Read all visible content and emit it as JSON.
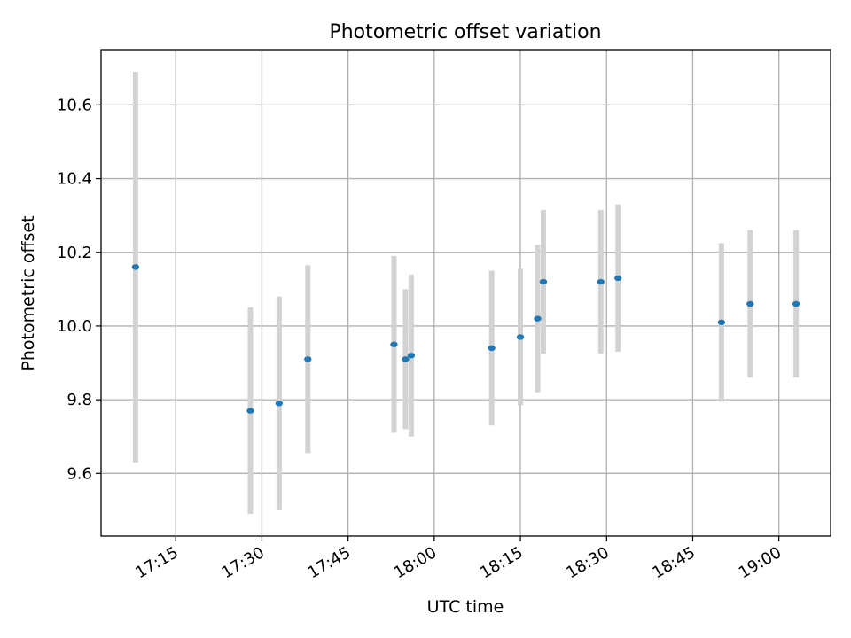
{
  "chart_data": {
    "type": "scatter",
    "title": "Photometric offset variation",
    "xlabel": "UTC time",
    "ylabel": "Photometric offset",
    "grid": true,
    "x_tick_labels": [
      "17:15",
      "17:30",
      "17:45",
      "18:00",
      "18:15",
      "18:30",
      "18:45",
      "19:00"
    ],
    "y_tick_labels": [
      "9.6",
      "9.8",
      "10.0",
      "10.2",
      "10.4",
      "10.6"
    ],
    "xlim": [
      "17:02",
      "19:09"
    ],
    "ylim": [
      9.43,
      10.75
    ],
    "x_axis_format": "HH:MM",
    "errorbar_color": "#d3d3d3",
    "marker_color": "#1f77b4",
    "series": [
      {
        "points": [
          {
            "x": "17:08",
            "y": 10.16,
            "err": 0.53
          },
          {
            "x": "17:28",
            "y": 9.77,
            "err": 0.28
          },
          {
            "x": "17:33",
            "y": 9.79,
            "err": 0.29
          },
          {
            "x": "17:38",
            "y": 9.91,
            "err": 0.255
          },
          {
            "x": "17:53",
            "y": 9.95,
            "err": 0.24
          },
          {
            "x": "17:55",
            "y": 9.91,
            "err": 0.19
          },
          {
            "x": "17:56",
            "y": 9.92,
            "err": 0.22
          },
          {
            "x": "18:10",
            "y": 9.94,
            "err": 0.21
          },
          {
            "x": "18:15",
            "y": 9.97,
            "err": 0.185
          },
          {
            "x": "18:18",
            "y": 10.02,
            "err": 0.2
          },
          {
            "x": "18:19",
            "y": 10.12,
            "err": 0.195
          },
          {
            "x": "18:29",
            "y": 10.12,
            "err": 0.195
          },
          {
            "x": "18:32",
            "y": 10.13,
            "err": 0.2
          },
          {
            "x": "18:50",
            "y": 10.01,
            "err": 0.215
          },
          {
            "x": "18:55",
            "y": 10.06,
            "err": 0.2
          },
          {
            "x": "19:03",
            "y": 10.06,
            "err": 0.2
          }
        ]
      }
    ]
  }
}
